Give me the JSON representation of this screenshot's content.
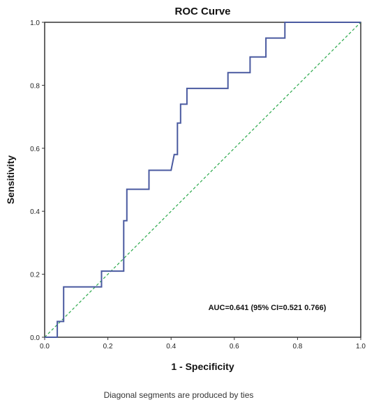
{
  "chart_data": {
    "type": "line",
    "title": "ROC Curve",
    "xlabel": "1 - Specificity",
    "ylabel": "Sensitivity",
    "xlim": [
      0,
      1
    ],
    "ylim": [
      0,
      1
    ],
    "x_ticks": [
      "0.0",
      "0.2",
      "0.4",
      "0.6",
      "0.8",
      "1.0"
    ],
    "y_ticks": [
      "0.0",
      "0.2",
      "0.4",
      "0.6",
      "0.8",
      "1.0"
    ],
    "grid": false,
    "annotation": "AUC=0.641 (95% CI=0.521 0.766)",
    "footnote": "Diagonal segments are produced by ties",
    "colors": {
      "roc": "#4a5aa0",
      "reference": "#2aa84a",
      "frame": "#333333"
    },
    "series": [
      {
        "x": [
          0,
          0.04,
          0.04,
          0.06,
          0.06,
          0.18,
          0.18,
          0.25,
          0.25,
          0.26,
          0.26,
          0.33,
          0.33,
          0.4,
          0.41,
          0.42,
          0.42,
          0.43,
          0.43,
          0.45,
          0.45,
          0.58,
          0.58,
          0.65,
          0.65,
          0.7,
          0.7,
          0.76,
          0.76,
          1.0
        ],
        "y": [
          0,
          0,
          0.05,
          0.05,
          0.16,
          0.16,
          0.21,
          0.21,
          0.37,
          0.37,
          0.47,
          0.47,
          0.53,
          0.53,
          0.58,
          0.58,
          0.68,
          0.68,
          0.74,
          0.74,
          0.79,
          0.79,
          0.84,
          0.84,
          0.89,
          0.89,
          0.95,
          0.95,
          1.0,
          1.0
        ]
      },
      {
        "x": [
          0,
          1
        ],
        "y": [
          0,
          1
        ]
      }
    ]
  }
}
